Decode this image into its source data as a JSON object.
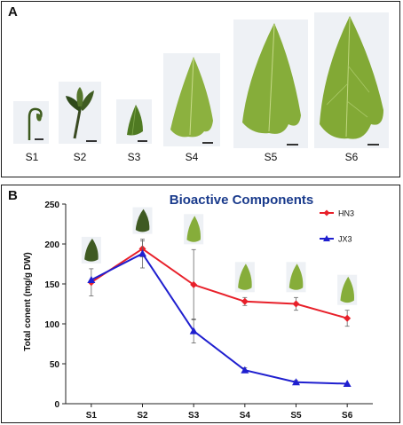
{
  "panel_a": {
    "letter": "A",
    "stages": [
      "S1",
      "S2",
      "S3",
      "S4",
      "S5",
      "S6"
    ]
  },
  "panel_b": {
    "letter": "B"
  },
  "chart_data": {
    "type": "line",
    "title": "Bioactive Components",
    "xlabel": "",
    "ylabel": "Total conent (mg/g DW)",
    "categories": [
      "S1",
      "S2",
      "S3",
      "S4",
      "S5",
      "S6"
    ],
    "ylim": [
      0,
      250
    ],
    "yticks": [
      0,
      50,
      100,
      150,
      200,
      250
    ],
    "grid": false,
    "legend_position": "top-right",
    "series": [
      {
        "name": "HN3",
        "color": "#e8202a",
        "marker": "diamond",
        "values": [
          152,
          194,
          149,
          128,
          125,
          107
        ],
        "error": [
          17,
          10,
          44,
          5,
          8,
          10
        ]
      },
      {
        "name": "JX3",
        "color": "#1f1fcf",
        "marker": "triangle",
        "values": [
          155,
          188,
          91,
          42,
          27,
          25
        ],
        "error": [
          0,
          18,
          15,
          3,
          2,
          0
        ]
      }
    ]
  }
}
